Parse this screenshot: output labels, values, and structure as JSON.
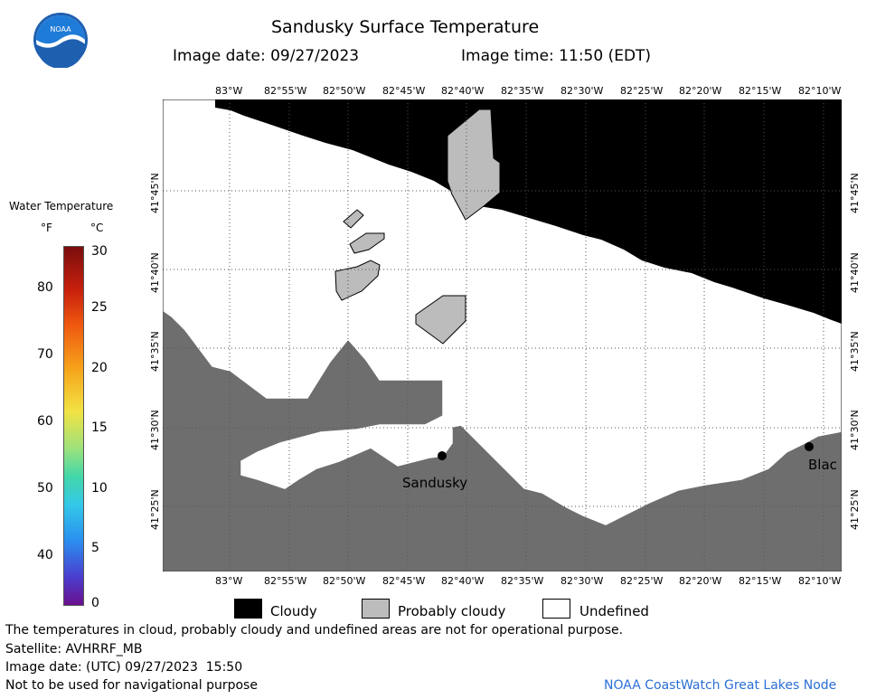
{
  "header": {
    "title": "Sandusky Surface Temperature",
    "image_date": "Image date: 09/27/2023",
    "image_time": "Image time: 11:50 (EDT)"
  },
  "logo": {
    "text": "NOAA"
  },
  "colors": {
    "land": "#6e6e6e",
    "cloudy": "#000000",
    "probably_cloudy": "#bcbcbc",
    "undefined": "#ffffff"
  },
  "lon_ticks": [
    "83°W",
    "82°55'W",
    "82°50'W",
    "82°45'W",
    "82°40'W",
    "82°35'W",
    "82°30'W",
    "82°25'W",
    "82°20'W",
    "82°15'W",
    "82°10'W"
  ],
  "lat_ticks": [
    "41°45'N",
    "41°40'N",
    "41°35'N",
    "41°30'N",
    "41°25'N"
  ],
  "colorbar": {
    "title": "Water Temperature",
    "unit_f": "°F",
    "unit_c": "°C",
    "f_labels": [
      "80",
      "70",
      "60",
      "50",
      "40"
    ],
    "c_labels": [
      "30",
      "25",
      "20",
      "15",
      "10",
      "5",
      "0"
    ]
  },
  "places": [
    {
      "name": "Sandusky"
    },
    {
      "name": "Blac"
    }
  ],
  "legend": {
    "cloudy": "Cloudy",
    "probably_cloudy": "Probably cloudy",
    "undefined": "Undefined"
  },
  "footer": {
    "disclaimer": "The temperatures in cloud, probably cloudy and undefined areas are not for operational purpose.",
    "satellite": "Satellite: AVHRRF_MB",
    "utc_date": "Image date: (UTC) 09/27/2023  15:50",
    "nav": "Not to be used for navigational purpose",
    "credit": "NOAA CoastWatch Great Lakes Node"
  }
}
